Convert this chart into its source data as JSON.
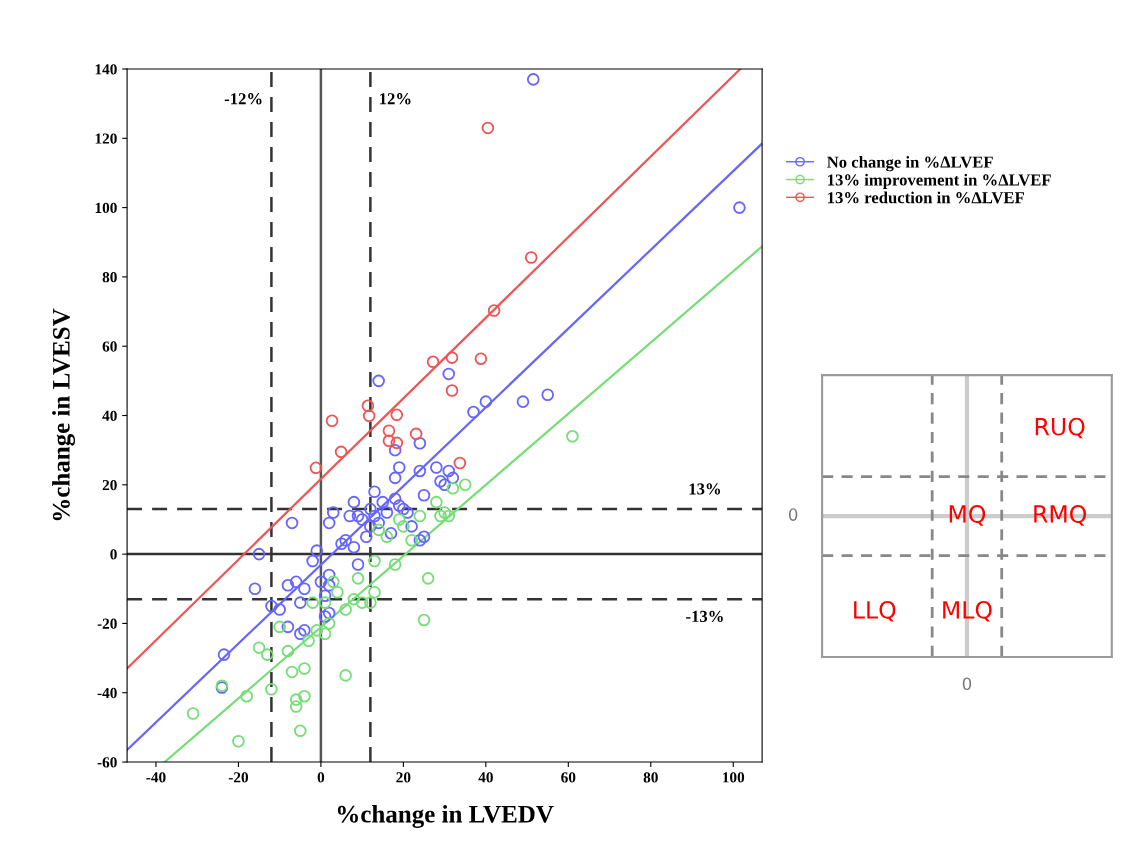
{
  "chart_data": [
    {
      "type": "scatter",
      "xlabel": "%change in LVEDV",
      "ylabel": "%change in LVESV",
      "xlim": [
        -47,
        107
      ],
      "ylim": [
        -60,
        140
      ],
      "xticks": [
        -40,
        -20,
        0,
        20,
        40,
        60,
        80,
        100
      ],
      "yticks": [
        -60,
        -40,
        -20,
        0,
        20,
        40,
        60,
        80,
        100,
        120,
        140
      ],
      "marker": "circle",
      "grid": false,
      "legend": "right",
      "series": [
        {
          "name": "No change in %ΔLVEF",
          "color": "#6666ff",
          "x": [
            -23.5,
            -24,
            -15,
            -16,
            -12,
            -10,
            -8,
            -6,
            -4,
            -7,
            -5,
            -8,
            -5,
            -4,
            -2,
            -1,
            1,
            0,
            2,
            2,
            2,
            1,
            2,
            3,
            5,
            6,
            7,
            8,
            8,
            9,
            9,
            10,
            11,
            12,
            12,
            13,
            13,
            14,
            15,
            16,
            17,
            18,
            18,
            19,
            19,
            20,
            21,
            22,
            24,
            24,
            25,
            25,
            28,
            29,
            30,
            31,
            32,
            14,
            18,
            24,
            31,
            37,
            40,
            49,
            55,
            51.5,
            101.5
          ],
          "values": [
            -29,
            -38.5,
            0,
            -10,
            -15,
            -16,
            -9,
            -8,
            -10,
            9,
            -14,
            -21,
            -23,
            -22,
            -2,
            1,
            -12,
            -8,
            -6,
            -9,
            -17,
            -18,
            9,
            12,
            3,
            4,
            11,
            2,
            15,
            11,
            -3,
            10,
            5,
            8,
            13,
            18,
            11,
            9,
            15,
            12,
            6,
            22,
            16,
            25,
            14,
            13,
            12,
            8,
            4,
            24,
            17,
            5,
            25,
            21,
            20,
            24,
            22,
            50,
            30,
            32,
            52,
            41,
            44,
            44,
            46,
            137,
            100
          ]
        },
        {
          "name": "13% improvement in %ΔLVEF",
          "color": "#77dd77",
          "x": [
            -31,
            -24,
            -20,
            -18,
            -15,
            -13,
            -12,
            -10,
            -8,
            -7,
            -6,
            -6,
            -5,
            -4,
            -4,
            -3,
            -2,
            -1,
            1,
            1,
            2,
            3,
            4,
            6,
            6,
            8,
            9,
            10,
            12,
            13,
            13,
            14,
            16,
            18,
            19,
            20,
            22,
            24,
            25,
            26,
            28,
            29,
            30,
            31,
            32,
            35,
            61
          ],
          "values": [
            -46,
            -38,
            -54,
            -41,
            -27,
            -29,
            -39,
            -21,
            -28,
            -34,
            -42,
            -44,
            -51,
            -33,
            -41,
            -25,
            -14,
            -22,
            -23,
            -14,
            -20,
            -8,
            -11,
            -16,
            -35,
            -13,
            -7,
            -14,
            -14,
            -2,
            -11,
            7,
            5,
            -3,
            10,
            8,
            4,
            11,
            -19,
            -7,
            15,
            11,
            12,
            11,
            19,
            20,
            34
          ]
        },
        {
          "name": "13% reduction in %ΔLVEF",
          "color": "#ee5555",
          "x": [
            -1.2,
            2.7,
            4.9,
            11.4,
            11.7,
            16.5,
            16.5,
            18.4,
            18.4,
            23.1,
            27.2,
            31.8,
            31.8,
            33.7,
            38.8,
            40.5,
            42,
            51
          ],
          "values": [
            24.9,
            38.5,
            29.5,
            42.8,
            39.9,
            35.6,
            32.7,
            40.2,
            32.1,
            34.7,
            55.5,
            56.7,
            47.2,
            26.3,
            56.4,
            123,
            70.3,
            85.6
          ]
        },
        {
          "type": "line",
          "marker": "none",
          "color": "#6666ff",
          "x": [
            -47,
            107
          ],
          "values": [
            -56.5,
            118.5
          ]
        },
        {
          "type": "line",
          "marker": "none",
          "color": "#77dd77",
          "x": [
            -37.9,
            107
          ],
          "values": [
            -60,
            88.8
          ]
        },
        {
          "type": "line",
          "marker": "none",
          "color": "#ee5555",
          "x": [
            -47,
            101.7
          ],
          "values": [
            -33,
            140
          ]
        }
      ],
      "ref_lines": [
        {
          "axis": "x",
          "value": -12,
          "label": "-12%",
          "line_style": "dashed",
          "color": "#333333"
        },
        {
          "axis": "x",
          "value": 12,
          "label": "12%",
          "line_style": "dashed",
          "color": "#333333"
        },
        {
          "axis": "y",
          "value": 13,
          "label": "13%",
          "line_style": "dashed",
          "color": "#333333"
        },
        {
          "axis": "y",
          "value": -13,
          "label": "-13%",
          "line_style": "dashed",
          "color": "#333333"
        },
        {
          "axis": "x",
          "value": 0,
          "label": null,
          "line_style": "solid",
          "color": "#555555"
        },
        {
          "axis": "y",
          "value": 0,
          "label": null,
          "line_style": "solid",
          "color": "#333333"
        }
      ]
    },
    {
      "type": "other",
      "annotations": [
        "RUQ",
        "MQ",
        "RMQ",
        "LLQ",
        "MLQ",
        "0",
        "0"
      ]
    }
  ]
}
